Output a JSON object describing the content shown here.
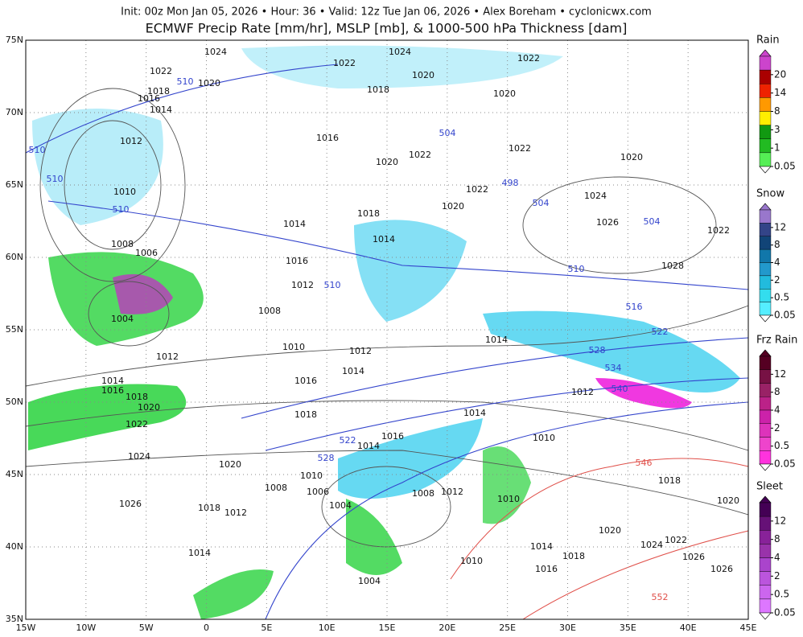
{
  "header": {
    "info": "Init: 00z Mon Jan 05, 2026 • Hour: 36 • Valid: 12z Tue Jan 06, 2026 • Alex Boreham • cyclonicwx.com",
    "title": "ECMWF Precip Rate [mm/hr], MSLP [mb], & 1000-500 hPa Thickness [dam]"
  },
  "map": {
    "lon_ticks": [
      "15W",
      "10W",
      "5W",
      "0",
      "5E",
      "10E",
      "15E",
      "20E",
      "25E",
      "30E",
      "35E",
      "40E",
      "45E"
    ],
    "lat_ticks": [
      "35N",
      "40N",
      "45N",
      "50N",
      "55N",
      "60N",
      "65N",
      "70N",
      "75N"
    ],
    "isobar_labels": [
      "1024",
      "1024",
      "1022",
      "1022",
      "1022",
      "1020",
      "1020",
      "1018",
      "1018",
      "1016",
      "1014",
      "1020",
      "1016",
      "1012",
      "1022",
      "1020",
      "1022",
      "1020",
      "1010",
      "1022",
      "1024",
      "1020",
      "1018",
      "1026",
      "1014",
      "1022",
      "1014",
      "1008",
      "1006",
      "1016",
      "1028",
      "1012",
      "1008",
      "1004",
      "1010",
      "1012",
      "1014",
      "1012",
      "1014",
      "1016",
      "1014",
      "1016",
      "1018",
      "1020",
      "1018",
      "1012",
      "1014",
      "1022",
      "1016",
      "1014",
      "1010",
      "1024",
      "1020",
      "1010",
      "1008",
      "1006",
      "1018",
      "1012",
      "1008",
      "1026",
      "1018",
      "1012",
      "1004",
      "1010",
      "1020",
      "1020",
      "1022",
      "1014",
      "1014",
      "1024",
      "1026",
      "1018",
      "1010",
      "1016",
      "1026",
      "1004"
    ],
    "thickness_labels": [
      "510",
      "510",
      "510",
      "510",
      "504",
      "498",
      "504",
      "504",
      "510",
      "510",
      "516",
      "522",
      "528",
      "534",
      "540",
      "522",
      "528"
    ],
    "warm_thickness_labels": [
      "546",
      "552"
    ]
  },
  "legend": [
    {
      "title": "Rain",
      "ticks": [
        "20",
        "14",
        "8",
        "3",
        "1",
        "0.05"
      ]
    },
    {
      "title": "Snow",
      "ticks": [
        "12",
        "8",
        "4",
        "2",
        "0.5",
        "0.05"
      ]
    },
    {
      "title": "Frz Rain",
      "ticks": [
        "12",
        "8",
        "4",
        "2",
        "0.5",
        "0.05"
      ]
    },
    {
      "title": "Sleet",
      "ticks": [
        "12",
        "8",
        "4",
        "2",
        "0.5",
        "0.05"
      ]
    }
  ]
}
